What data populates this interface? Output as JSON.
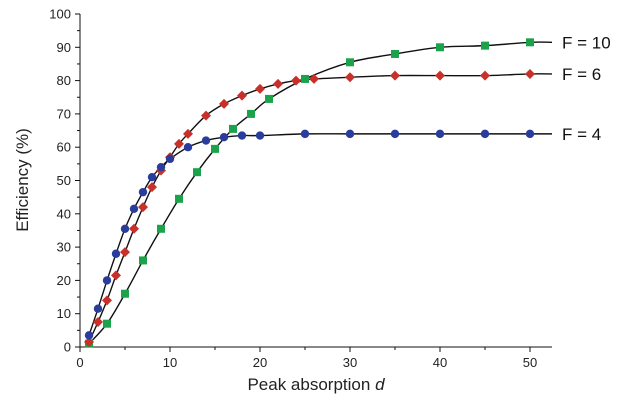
{
  "chart_data": {
    "type": "scatter",
    "xlabel": "Peak absorption",
    "xlabel_var": "d",
    "ylabel": "Efficiency (%)",
    "xlim": [
      0,
      52
    ],
    "ylim": [
      0,
      100
    ],
    "xticks": [
      0,
      10,
      20,
      30,
      40,
      50
    ],
    "yticks": [
      0,
      10,
      20,
      30,
      40,
      50,
      60,
      70,
      80,
      90,
      100
    ],
    "grid": false,
    "legend": "series labels at right end of curves",
    "series": [
      {
        "name": "F = 10",
        "color": "#1aa34a",
        "marker": "square",
        "fit_line": true,
        "x": [
          1,
          3,
          5,
          7,
          9,
          11,
          13,
          15,
          17,
          19,
          21,
          25,
          30,
          35,
          40,
          45,
          50
        ],
        "y": [
          1,
          7,
          16,
          26,
          35.5,
          44.5,
          52.5,
          59.5,
          65.5,
          70,
          74.5,
          80.5,
          85.5,
          88,
          90,
          90.5,
          91.5
        ]
      },
      {
        "name": "F = 6",
        "color": "#c8302a",
        "marker": "diamond",
        "fit_line": true,
        "x": [
          1,
          2,
          3,
          4,
          5,
          6,
          7,
          8,
          9,
          10,
          11,
          12,
          14,
          16,
          18,
          20,
          22,
          24,
          26,
          30,
          35,
          40,
          45,
          50
        ],
        "y": [
          1.5,
          7.5,
          14,
          21.5,
          28.5,
          35.5,
          42,
          48,
          53,
          57,
          61,
          64,
          69.5,
          73,
          75.5,
          77.5,
          79,
          80,
          80.5,
          81,
          81.5,
          81.5,
          81.5,
          82
        ]
      },
      {
        "name": "F = 4",
        "color": "#2a3d9c",
        "marker": "circle",
        "fit_line": true,
        "x": [
          1,
          2,
          3,
          4,
          5,
          6,
          7,
          8,
          9,
          10,
          12,
          14,
          16,
          18,
          20,
          25,
          30,
          35,
          40,
          45,
          50
        ],
        "y": [
          3.5,
          11.5,
          20,
          28,
          35.5,
          41.5,
          46.5,
          51,
          54,
          56.5,
          60,
          62,
          63,
          63.5,
          63.5,
          64,
          64,
          64,
          64,
          64,
          64
        ]
      }
    ]
  }
}
